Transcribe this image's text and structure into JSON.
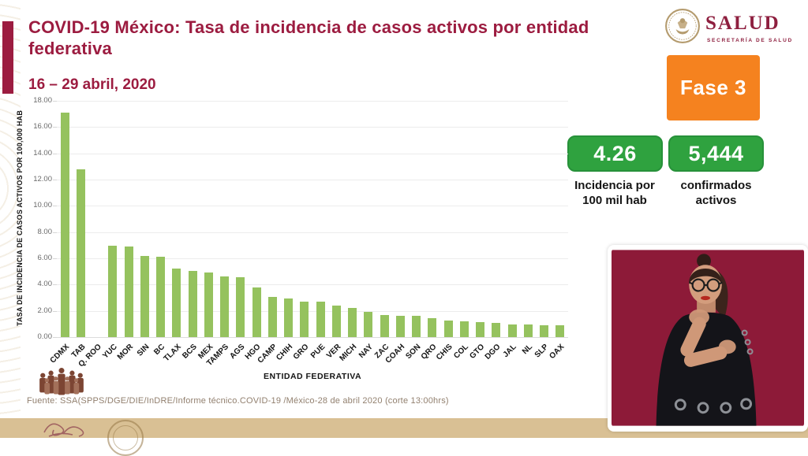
{
  "header": {
    "title": "COVID-19 México: Tasa de incidencia de casos activos por entidad federativa",
    "date_range": "16 – 29 abril, 2020"
  },
  "logo": {
    "name": "SALUD",
    "subtitle": "SECRETARÍA DE SALUD",
    "seal_icon": "eagle-seal-icon"
  },
  "phase": {
    "label": "Fase 3",
    "color": "#F5821F"
  },
  "stats": [
    {
      "value": "4.26",
      "label_line1": "Incidencia por",
      "label_line2": "100 mil hab"
    },
    {
      "value": "5,444",
      "label_line1": "confirmados",
      "label_line2": "activos"
    }
  ],
  "chart_data": {
    "type": "bar",
    "title": "Tasa de incidencia de casos activos por entidad federativa",
    "categories": [
      "CDMX",
      "TAB",
      "Q. ROO",
      "YUC",
      "MOR",
      "SIN",
      "BC",
      "TLAX",
      "BCS",
      "MEX",
      "TAMPS",
      "AGS",
      "HGO",
      "CAMP",
      "CHIH",
      "GRO",
      "PUE",
      "VER",
      "MICH",
      "NAY",
      "ZAC",
      "COAH",
      "SON",
      "QRO",
      "CHIS",
      "COL",
      "GTO",
      "DGO",
      "JAL",
      "NL",
      "SLP",
      "OAX"
    ],
    "values": [
      17.1,
      12.8,
      null,
      6.95,
      6.9,
      6.2,
      6.15,
      5.2,
      5.05,
      4.95,
      4.6,
      4.55,
      3.8,
      3.05,
      2.95,
      2.72,
      2.7,
      2.4,
      2.2,
      1.95,
      1.7,
      1.65,
      1.6,
      1.45,
      1.25,
      1.18,
      1.12,
      1.08,
      0.97,
      0.95,
      0.9,
      0.88
    ],
    "xlabel": "ENTIDAD FEDERATIVA",
    "ylabel": "TASA DE INCIDENCIA DE CASOS ACTIVOS  POR 100,000 HAB",
    "ylim": [
      0,
      18
    ],
    "yticks": [
      "0.00",
      "2.00",
      "4.00",
      "6.00",
      "8.00",
      "10.00",
      "12.00",
      "14.00",
      "16.00",
      "18.00"
    ],
    "grid": true,
    "legend": null,
    "bar_color": "#95C25E",
    "note": "Bar for Q. ROO is not visible in the source image (label present, no bar drawn)"
  },
  "footer": {
    "source": "Fuente: SSA(SPPS/DGE/DIE/InDRE/Informe técnico.COVID-19 /México-28 de abril 2020 (corte 13:00hrs)"
  },
  "colors": {
    "title_maroon": "#9C1C40",
    "phase_orange": "#F5821F",
    "stat_green": "#2FA23F",
    "bar_green": "#95C25E",
    "bottom_band": "#D9C094",
    "interpreter_background": "#8D1A38"
  },
  "icons": {
    "seal": "eagle-seal-icon",
    "crowd": "historical-figures-icon",
    "interpreter": "sign-language-interpreter-illustration"
  }
}
